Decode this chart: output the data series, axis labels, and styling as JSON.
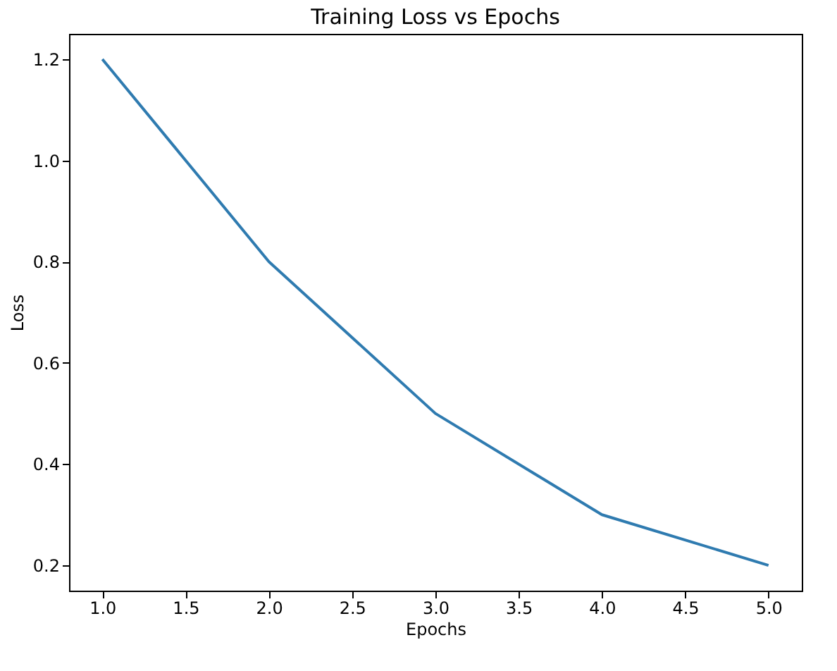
{
  "chart_data": {
    "type": "line",
    "title": "Training Loss vs Epochs",
    "xlabel": "Epochs",
    "ylabel": "Loss",
    "x": [
      1,
      2,
      3,
      4,
      5
    ],
    "series": [
      {
        "color": "#2f7bb0",
        "values": [
          1.2,
          0.8,
          0.5,
          0.3,
          0.2
        ]
      }
    ],
    "xlim": [
      0.8,
      5.2
    ],
    "xticks": [
      {
        "value": 1,
        "label": "1.0"
      },
      {
        "value": 1.5,
        "label": "1.5"
      },
      {
        "value": 2,
        "label": "2.0"
      },
      {
        "value": 2.5,
        "label": "2.5"
      },
      {
        "value": 3,
        "label": "3.0"
      },
      {
        "value": 3.5,
        "label": "3.5"
      },
      {
        "value": 4,
        "label": "4.0"
      },
      {
        "value": 4.5,
        "label": "4.5"
      },
      {
        "value": 5,
        "label": "5.0"
      }
    ],
    "ylim": [
      0.15,
      1.25
    ],
    "yticks": [
      {
        "value": 0.2,
        "label": "0.2"
      },
      {
        "value": 0.4,
        "label": "0.4"
      },
      {
        "value": 0.6,
        "label": "0.6"
      },
      {
        "value": 0.8,
        "label": "0.8"
      },
      {
        "value": 1.0,
        "label": "1.0"
      },
      {
        "value": 1.2,
        "label": "1.2"
      }
    ],
    "grid": false,
    "marker": "none",
    "line_style": "solid"
  }
}
